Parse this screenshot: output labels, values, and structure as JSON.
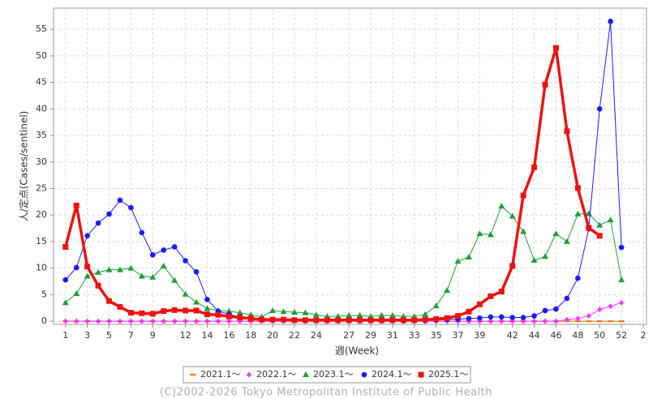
{
  "chart_data": {
    "type": "line",
    "x_label": "週(Week)",
    "y_label": "人/定点(Cases/sentinel)",
    "footer": "(C)2002-2026 Tokyo Metropolitan Institute of Public Health",
    "x": [
      1,
      2,
      3,
      4,
      5,
      6,
      7,
      8,
      9,
      10,
      11,
      12,
      13,
      14,
      15,
      16,
      17,
      18,
      19,
      20,
      21,
      22,
      23,
      24,
      25,
      26,
      27,
      28,
      29,
      30,
      31,
      32,
      33,
      34,
      35,
      36,
      37,
      38,
      39,
      40,
      41,
      42,
      43,
      44,
      45,
      46,
      47,
      48,
      49,
      50,
      51,
      52
    ],
    "xlim": [
      -0.1,
      54.3
    ],
    "xticks": [
      1,
      3,
      5,
      7,
      9,
      12,
      14,
      16,
      18,
      20,
      22,
      24,
      27,
      29,
      31,
      33,
      35,
      37,
      39,
      42,
      44,
      46,
      48,
      50,
      52,
      {
        "value": 54,
        "label": "2"
      }
    ],
    "ylim": [
      -0.6,
      59
    ],
    "yticks": [
      0,
      5,
      10,
      15,
      20,
      25,
      30,
      35,
      40,
      45,
      50,
      55
    ],
    "grid": true,
    "legend": "bottom",
    "series": [
      {
        "name": "2021.1〜",
        "color": "#ff7f0e",
        "marker": "dash",
        "line_width": 1,
        "values": [
          0,
          0,
          0,
          0,
          0,
          0,
          0,
          0,
          0,
          0,
          0,
          0,
          0,
          0,
          0,
          0,
          0,
          0,
          0,
          0,
          0,
          0,
          0,
          0,
          0,
          0,
          0,
          0,
          0,
          0,
          0,
          0,
          0,
          0,
          0,
          0,
          0,
          0,
          0,
          0,
          0,
          0,
          0,
          0,
          0,
          0,
          0,
          0,
          0,
          0,
          0,
          0
        ]
      },
      {
        "name": "2022.1〜",
        "color": "#ff33ff",
        "marker": "diamond",
        "line_width": 1,
        "values": [
          0,
          0,
          0,
          0,
          0,
          0,
          0,
          0,
          0,
          0,
          0,
          0,
          0,
          0,
          0,
          0,
          0,
          0,
          0,
          0,
          0,
          0,
          0,
          0,
          0,
          0,
          0,
          0,
          0,
          0,
          0,
          0,
          0,
          0,
          0,
          0,
          0,
          0,
          0,
          0,
          0,
          0,
          0,
          0,
          0,
          0,
          0.3,
          0.5,
          1.0,
          2.2,
          2.8,
          3.5
        ]
      },
      {
        "name": "2023.1〜",
        "color": "#1f9e3a",
        "marker": "triangle",
        "line_width": 1,
        "values": [
          3.5,
          5.2,
          8.5,
          9.2,
          9.7,
          9.7,
          10.0,
          8.5,
          8.3,
          10.4,
          7.7,
          5.1,
          3.6,
          2.4,
          2.0,
          1.9,
          1.6,
          1.2,
          0.8,
          2.0,
          1.8,
          1.7,
          1.6,
          1.2,
          0.9,
          0.9,
          1.1,
          1.1,
          0.9,
          1.1,
          1.1,
          0.9,
          0.9,
          1.3,
          2.9,
          5.8,
          11.3,
          12.1,
          16.5,
          16.3,
          21.7,
          19.8,
          16.9,
          11.5,
          12.2,
          16.5,
          15.0,
          20.2,
          20.3,
          18.1,
          19.1,
          7.8
        ]
      },
      {
        "name": "2024.1〜",
        "color": "#1a1aff",
        "marker": "circle",
        "line_width": 1,
        "values": [
          7.8,
          10.1,
          16.1,
          18.5,
          20.2,
          22.8,
          21.4,
          16.7,
          12.5,
          13.4,
          14.0,
          11.4,
          9.3,
          4.1,
          1.9,
          1.3,
          0.8,
          0.5,
          0.3,
          0.2,
          0.2,
          0.2,
          0.1,
          0.1,
          0.1,
          0.1,
          0.1,
          0.1,
          0.1,
          0.1,
          0.1,
          0.1,
          0.1,
          0.1,
          0.2,
          0.3,
          0.4,
          0.5,
          0.6,
          0.8,
          0.8,
          0.7,
          0.7,
          1.0,
          2.0,
          2.3,
          4.3,
          8.1,
          17.4,
          40.0,
          56.5,
          13.9
        ]
      },
      {
        "name": "2025.1〜",
        "color": "#ee1111",
        "marker": "square",
        "line_width": 3.5,
        "values": [
          14.0,
          21.8,
          10.3,
          6.7,
          3.8,
          2.7,
          1.6,
          1.5,
          1.4,
          1.9,
          2.1,
          2.0,
          2.0,
          1.3,
          1.2,
          0.9,
          0.7,
          0.5,
          0.3,
          0.3,
          0.3,
          0.2,
          0.2,
          0.2,
          0.2,
          0.2,
          0.2,
          0.2,
          0.2,
          0.2,
          0.2,
          0.2,
          0.2,
          0.3,
          0.4,
          0.6,
          1.0,
          1.8,
          3.2,
          4.7,
          5.6,
          10.4,
          23.7,
          29.0,
          44.6,
          51.5,
          35.8,
          25.1,
          17.6,
          16.1,
          null,
          null
        ]
      }
    ]
  }
}
